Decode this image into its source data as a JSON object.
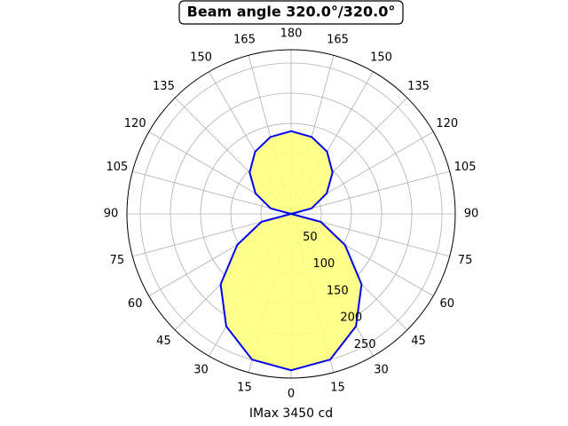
{
  "chart_data": {
    "type": "polar",
    "title": "Beam angle 320.0°/320.0°",
    "xlabel": "IMax 3450 cd",
    "theta": [
      0,
      15,
      30,
      45,
      60,
      75,
      90,
      105,
      120,
      135,
      150,
      165,
      180,
      195,
      210,
      225,
      240,
      255,
      270,
      285,
      300,
      315,
      330,
      345
    ],
    "values": [
      259,
      250,
      215,
      165,
      103,
      51,
      0,
      35,
      68,
      97,
      119,
      132,
      137,
      132,
      119,
      97,
      68,
      35,
      0,
      51,
      103,
      165,
      215,
      250
    ],
    "color": "#0000ee",
    "fill": "#ffff80",
    "rlim": [
      0,
      272
    ],
    "rticks": [
      50,
      100,
      150,
      200,
      250
    ],
    "thetaticks": [
      0,
      15,
      30,
      45,
      60,
      75,
      90,
      105,
      120,
      135,
      150,
      165,
      180,
      {
        "value": 195,
        "label": "165"
      },
      {
        "value": 210,
        "label": "150"
      },
      {
        "value": 225,
        "label": "135"
      },
      {
        "value": 240,
        "label": "120"
      },
      {
        "value": 255,
        "label": "105"
      },
      {
        "value": 270,
        "label": "90"
      },
      {
        "value": 285,
        "label": "75"
      },
      {
        "value": 300,
        "label": "60"
      },
      {
        "value": 315,
        "label": "45"
      },
      {
        "value": 330,
        "label": "30"
      },
      {
        "value": 345,
        "label": "15"
      }
    ],
    "grid": true
  }
}
